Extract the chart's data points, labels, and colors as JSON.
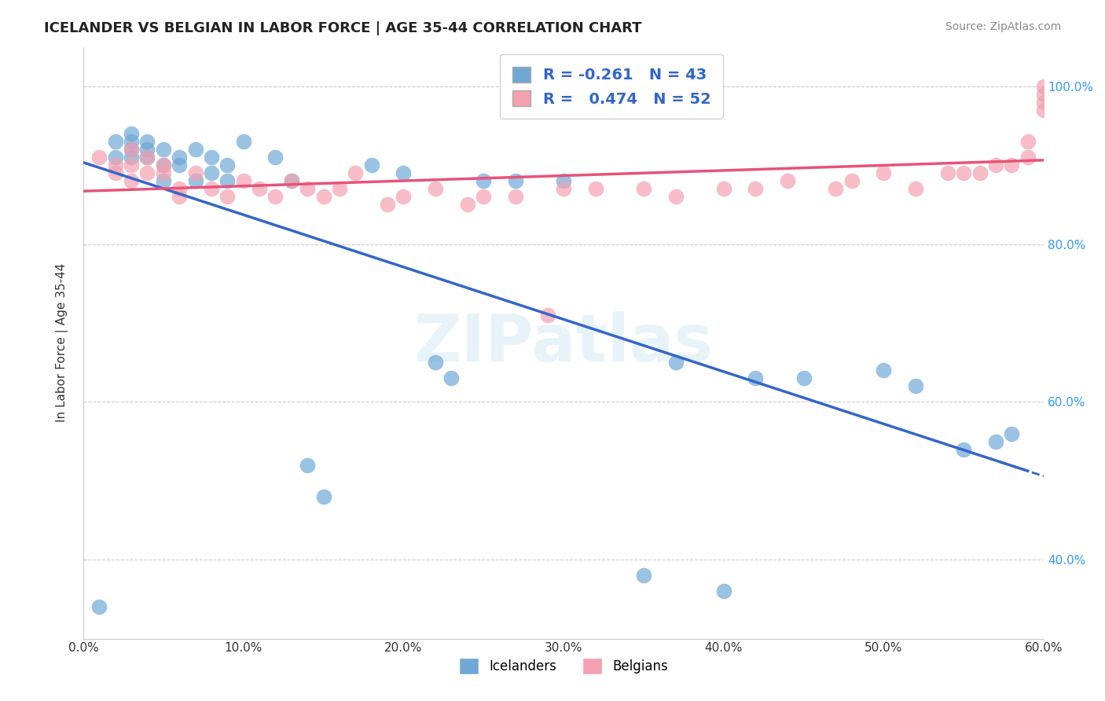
{
  "title": "ICELANDER VS BELGIAN IN LABOR FORCE | AGE 35-44 CORRELATION CHART",
  "source": "Source: ZipAtlas.com",
  "xlabel_bottom": "",
  "ylabel": "In Labor Force | Age 35-44",
  "xlabel_ticks": [
    "0.0%",
    "10.0%",
    "20.0%",
    "30.0%",
    "40.0%",
    "50.0%",
    "60.0%"
  ],
  "ylabel_ticks": [
    "40.0%",
    "60.0%",
    "80.0%",
    "100.0%"
  ],
  "xlim": [
    0.0,
    0.6
  ],
  "ylim": [
    0.3,
    1.05
  ],
  "legend_labels": [
    "Icelanders",
    "Belgians"
  ],
  "legend_R": [
    "R = -0.261",
    "R =  0.474"
  ],
  "legend_N": [
    "N = 43",
    "N = 52"
  ],
  "blue_color": "#6fa8d6",
  "pink_color": "#f4a0b0",
  "trend_blue": "#3366cc",
  "trend_pink": "#e8527a",
  "watermark": "ZIPatlas",
  "icelander_x": [
    0.01,
    0.02,
    0.02,
    0.03,
    0.03,
    0.03,
    0.03,
    0.04,
    0.04,
    0.04,
    0.05,
    0.05,
    0.05,
    0.06,
    0.06,
    0.07,
    0.07,
    0.08,
    0.08,
    0.09,
    0.09,
    0.1,
    0.12,
    0.13,
    0.14,
    0.15,
    0.18,
    0.2,
    0.22,
    0.23,
    0.25,
    0.27,
    0.3,
    0.35,
    0.37,
    0.4,
    0.42,
    0.45,
    0.5,
    0.52,
    0.55,
    0.57,
    0.58
  ],
  "icelander_y": [
    0.34,
    0.91,
    0.93,
    0.91,
    0.92,
    0.93,
    0.94,
    0.91,
    0.92,
    0.93,
    0.88,
    0.9,
    0.92,
    0.9,
    0.91,
    0.92,
    0.88,
    0.89,
    0.91,
    0.9,
    0.88,
    0.93,
    0.91,
    0.88,
    0.52,
    0.48,
    0.9,
    0.89,
    0.65,
    0.63,
    0.88,
    0.88,
    0.88,
    0.38,
    0.65,
    0.36,
    0.63,
    0.63,
    0.64,
    0.62,
    0.54,
    0.55,
    0.56
  ],
  "belgian_x": [
    0.01,
    0.02,
    0.02,
    0.03,
    0.03,
    0.03,
    0.04,
    0.04,
    0.05,
    0.05,
    0.06,
    0.06,
    0.07,
    0.08,
    0.09,
    0.1,
    0.11,
    0.12,
    0.13,
    0.14,
    0.15,
    0.16,
    0.17,
    0.19,
    0.2,
    0.22,
    0.24,
    0.25,
    0.27,
    0.29,
    0.3,
    0.32,
    0.35,
    0.37,
    0.4,
    0.42,
    0.44,
    0.47,
    0.48,
    0.5,
    0.52,
    0.54,
    0.55,
    0.56,
    0.57,
    0.58,
    0.59,
    0.59,
    0.6,
    0.6,
    0.6,
    0.6
  ],
  "belgian_y": [
    0.91,
    0.89,
    0.9,
    0.88,
    0.9,
    0.92,
    0.89,
    0.91,
    0.89,
    0.9,
    0.86,
    0.87,
    0.89,
    0.87,
    0.86,
    0.88,
    0.87,
    0.86,
    0.88,
    0.87,
    0.86,
    0.87,
    0.89,
    0.85,
    0.86,
    0.87,
    0.85,
    0.86,
    0.86,
    0.71,
    0.87,
    0.87,
    0.87,
    0.86,
    0.87,
    0.87,
    0.88,
    0.87,
    0.88,
    0.89,
    0.87,
    0.89,
    0.89,
    0.89,
    0.9,
    0.9,
    0.91,
    0.93,
    0.97,
    0.98,
    0.99,
    1.0
  ]
}
